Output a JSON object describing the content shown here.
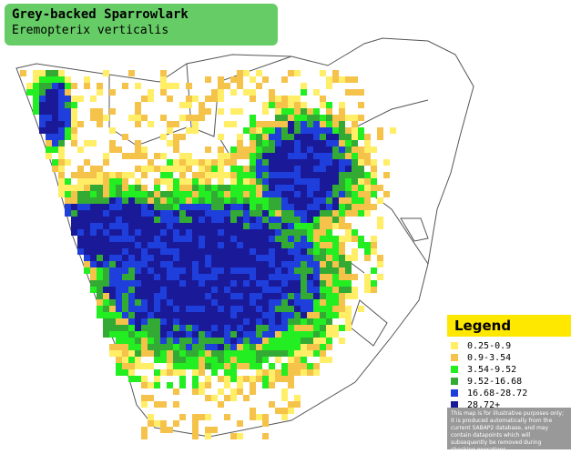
{
  "title": {
    "common_name": "Grey-backed Sparrowlark",
    "scientific_name": "Eremopterix verticalis"
  },
  "legend": {
    "heading": "Legend",
    "items": [
      {
        "label": "0.25-0.9",
        "color": "#ffee66"
      },
      {
        "label": "0.9-3.54",
        "color": "#f5c24a"
      },
      {
        "label": "3.54-9.52",
        "color": "#22ee22"
      },
      {
        "label": "9.52-16.68",
        "color": "#33aa33"
      },
      {
        "label": "16.68-28.72",
        "color": "#1f3fdd"
      },
      {
        "label": "28.72+",
        "color": "#1a1a99"
      }
    ],
    "disclaimer": "This map is for illustrative purposes only; it is produced automatically from the current SABAP2 database, and may contain datapoints which will subsequently be removed during checking operations."
  },
  "colors": {
    "title_background": "#66cc66",
    "legend_header": "#ffe800",
    "disclaimer_background": "#999999"
  }
}
